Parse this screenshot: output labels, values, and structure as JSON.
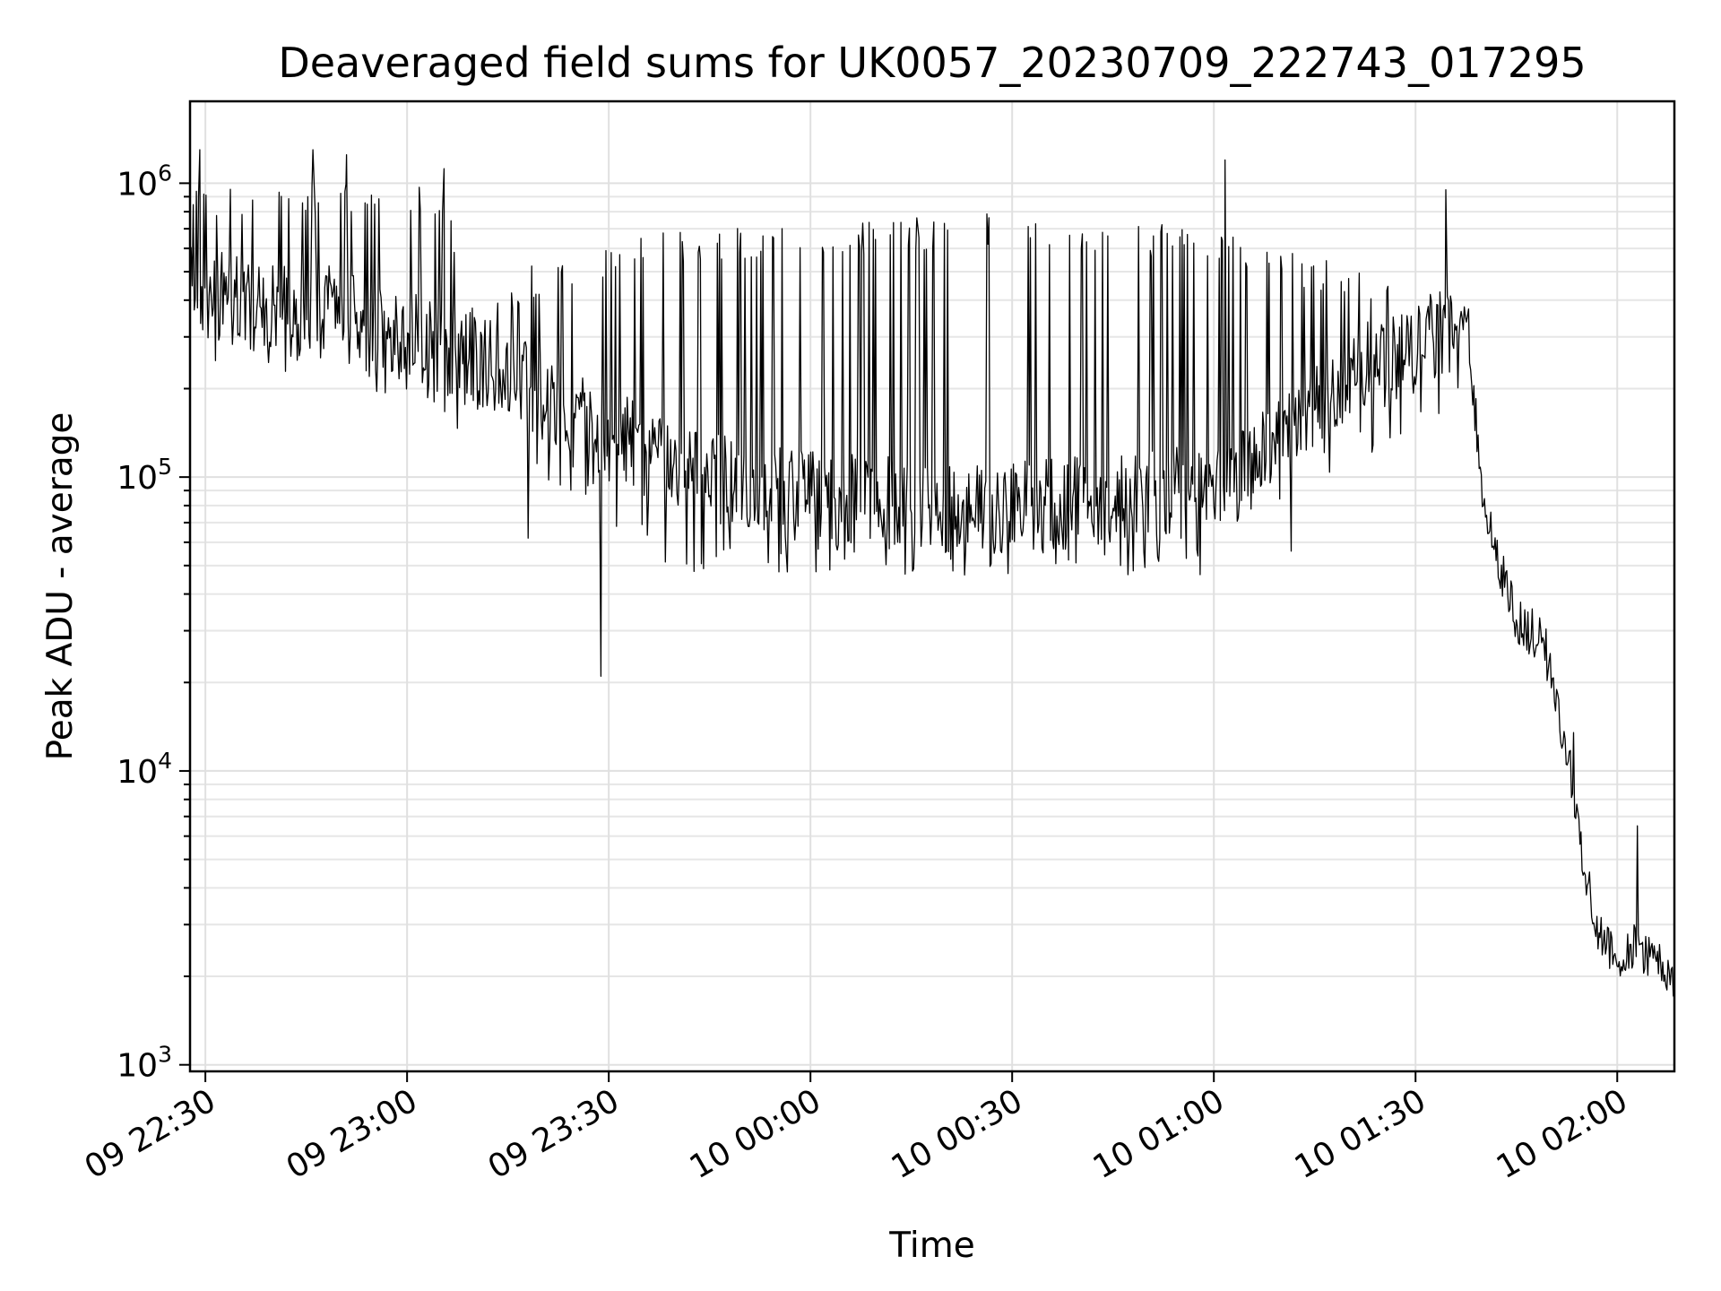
{
  "chart_data": {
    "type": "line",
    "title": "Deaveraged field sums for UK0057_20230709_222743_017295",
    "xlabel": "Time",
    "ylabel": "Peak ADU - average",
    "x_start": "2023-07-09 22:27:43",
    "x_end": "2023-07-10 02:08:30",
    "xlim": [
      "2023-07-09 22:27:43",
      "2023-07-10 02:08:30"
    ],
    "ylim": [
      950,
      1900000
    ],
    "yscale": "log",
    "grid": true,
    "line_color": "#000000",
    "x_ticks": [
      {
        "time": "2023-07-09 22:30:00",
        "label": "09 22:30"
      },
      {
        "time": "2023-07-09 23:00:00",
        "label": "09 23:00"
      },
      {
        "time": "2023-07-09 23:30:00",
        "label": "09 23:30"
      },
      {
        "time": "2023-07-10 00:00:00",
        "label": "10 00:00"
      },
      {
        "time": "2023-07-10 00:30:00",
        "label": "10 00:30"
      },
      {
        "time": "2023-07-10 01:00:00",
        "label": "10 01:00"
      },
      {
        "time": "2023-07-10 01:30:00",
        "label": "10 01:30"
      },
      {
        "time": "2023-07-10 02:00:00",
        "label": "10 02:00"
      }
    ],
    "y_ticks": [
      {
        "value": 1000,
        "base": "10",
        "exp": "3"
      },
      {
        "value": 10000,
        "base": "10",
        "exp": "4"
      },
      {
        "value": 100000,
        "base": "10",
        "exp": "5"
      },
      {
        "value": 1000000,
        "base": "10",
        "exp": "6"
      }
    ],
    "series": [
      {
        "baseline": [
          [
            "2023-07-09 22:27:43",
            420000
          ],
          [
            "2023-07-09 22:40:00",
            380000
          ],
          [
            "2023-07-09 22:50:00",
            360000
          ],
          [
            "2023-07-09 23:00:00",
            300000
          ],
          [
            "2023-07-09 23:10:00",
            260000
          ],
          [
            "2023-07-09 23:20:00",
            190000
          ],
          [
            "2023-07-09 23:30:00",
            140000
          ],
          [
            "2023-07-09 23:40:00",
            105000
          ],
          [
            "2023-07-10 00:00:00",
            85000
          ],
          [
            "2023-07-10 00:30:00",
            78000
          ],
          [
            "2023-07-10 01:00:00",
            90000
          ],
          [
            "2023-07-10 01:10:00",
            130000
          ],
          [
            "2023-07-10 01:20:00",
            220000
          ],
          [
            "2023-07-10 01:30:00",
            280000
          ],
          [
            "2023-07-10 01:36:00",
            330000
          ],
          [
            "2023-07-10 01:38:00",
            260000
          ],
          [
            "2023-07-10 01:40:00",
            90000
          ],
          [
            "2023-07-10 01:42:00",
            55000
          ],
          [
            "2023-07-10 01:45:00",
            32000
          ],
          [
            "2023-07-10 01:49:00",
            28000
          ],
          [
            "2023-07-10 01:51:00",
            17000
          ],
          [
            "2023-07-10 01:53:00",
            10500
          ],
          [
            "2023-07-10 01:55:00",
            5000
          ],
          [
            "2023-07-10 01:57:00",
            3000
          ],
          [
            "2023-07-10 02:00:00",
            2300
          ],
          [
            "2023-07-10 02:03:00",
            2600
          ],
          [
            "2023-07-10 02:08:30",
            1900
          ]
        ],
        "spike_top": [
          [
            "2023-07-09 22:27:43",
            1000000
          ],
          [
            "2023-07-09 23:05:00",
            1000000
          ],
          [
            "2023-07-09 23:10:00",
            400000
          ],
          [
            "2023-07-09 23:20:00",
            550000
          ],
          [
            "2023-07-09 23:40:00",
            700000
          ],
          [
            "2023-07-10 00:30:00",
            800000
          ],
          [
            "2023-07-10 01:00:00",
            700000
          ],
          [
            "2023-07-10 01:30:00",
            450000
          ],
          [
            "2023-07-10 01:38:00",
            400000
          ]
        ],
        "dip_bottom": [
          [
            "2023-07-09 22:27:43",
            260000
          ],
          [
            "2023-07-09 23:00:00",
            180000
          ],
          [
            "2023-07-09 23:20:00",
            100000
          ],
          [
            "2023-07-09 23:40:00",
            45000
          ],
          [
            "2023-07-10 00:30:00",
            45000
          ],
          [
            "2023-07-10 01:00:00",
            45000
          ],
          [
            "2023-07-10 01:10:00",
            80000
          ],
          [
            "2023-07-10 01:30:00",
            140000
          ],
          [
            "2023-07-10 01:38:00",
            200000
          ]
        ],
        "peaks": [
          [
            "2023-07-09 22:29:10",
            1300000
          ],
          [
            "2023-07-09 22:46:00",
            1300000
          ],
          [
            "2023-07-09 22:51:00",
            1250000
          ],
          [
            "2023-07-09 23:05:30",
            1120000
          ],
          [
            "2023-07-10 01:01:40",
            1200000
          ],
          [
            "2023-07-10 01:34:30",
            950000
          ],
          [
            "2023-07-10 02:03:00",
            6500
          ]
        ],
        "troughs": [
          [
            "2023-07-09 23:18:00",
            62000
          ],
          [
            "2023-07-09 23:28:50",
            21000
          ],
          [
            "2023-07-10 01:11:30",
            56000
          ],
          [
            "2023-07-10 01:53:30",
            13500
          ]
        ]
      }
    ]
  }
}
